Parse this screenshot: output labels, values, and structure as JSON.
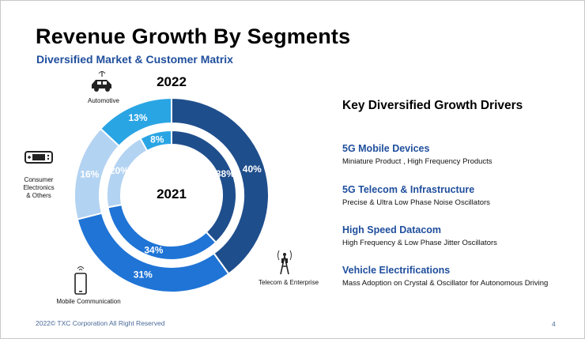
{
  "title": "Revenue Growth By Segments",
  "subtitle": "Diversified Market & Customer Matrix",
  "chart_data": {
    "type": "pie",
    "title": "Revenue Growth By Segments",
    "categories": [
      "Telecom & Enterprise",
      "Mobile Communication",
      "Consumer Electronics & Others",
      "Automotive"
    ],
    "series": [
      {
        "name": "2022",
        "values": [
          40,
          31,
          16,
          13
        ],
        "labels": [
          "40%",
          "31%",
          "16%",
          "13%"
        ]
      },
      {
        "name": "2021",
        "values": [
          38,
          34,
          20,
          8
        ],
        "labels": [
          "38%",
          "34%",
          "20%",
          "8%"
        ]
      }
    ],
    "colors": [
      "#1f4e8c",
      "#1f74d6",
      "#b3d3f2",
      "#2aa5e4"
    ]
  },
  "segment_labels": {
    "automotive": "Automotive",
    "consumer_line1": "Consumer",
    "consumer_line2": "Electronics",
    "consumer_line3": "& Others",
    "mobile": "Mobile Communication",
    "telecom": "Telecom & Enterprise"
  },
  "drivers": {
    "title": "Key Diversified Growth Drivers",
    "items": [
      {
        "heading": "5G Mobile Devices",
        "desc": "Miniature Product , High Frequency Products"
      },
      {
        "heading": "5G Telecom & Infrastructure",
        "desc": "Precise & Ultra Low Phase Noise Oscillators"
      },
      {
        "heading": "High Speed Datacom",
        "desc": "High Frequency & Low Phase Jitter Oscillators"
      },
      {
        "heading": "Vehicle Electrifications",
        "desc": "Mass Adoption on Crystal & Oscillator for Autonomous Driving"
      }
    ]
  },
  "footer": "2022© TXC Corporation All Right Reserved",
  "page_number": "4"
}
